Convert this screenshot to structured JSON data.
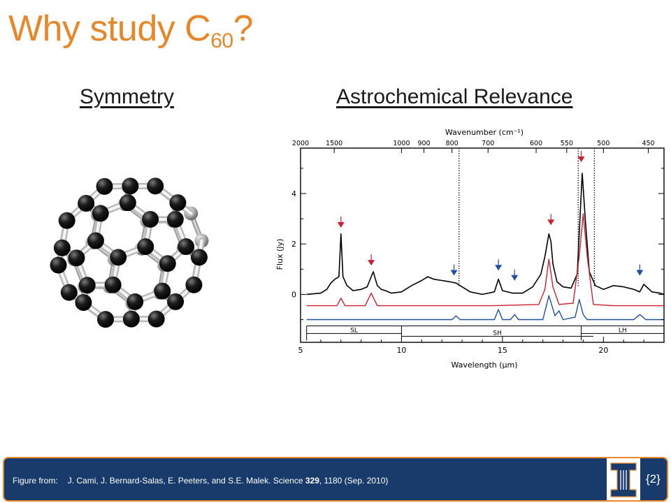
{
  "slide": {
    "title_main": "Why study C",
    "title_sub": "60",
    "title_end": "?",
    "heading_left": "Symmetry",
    "heading_right": "Astrochemical Relevance"
  },
  "figure": {
    "top_axis_label": "Wavenumber (cm⁻¹)",
    "bottom_axis_label": "Wavelength (μm)",
    "y_axis_label": "Flux (Jy)",
    "top_ticks": [
      "2000",
      "1500",
      "1000",
      "900",
      "800",
      "700",
      "600",
      "550",
      "500",
      "450"
    ],
    "bottom_ticks": [
      "5",
      "10",
      "15",
      "20"
    ],
    "y_ticks": [
      "0",
      "2",
      "4"
    ],
    "module_labels": [
      "SL",
      "SH",
      "LH"
    ]
  },
  "chart_data": {
    "type": "line",
    "xlabel": "Wavelength (μm)",
    "ylabel": "Flux (Jy)",
    "xlim": [
      5,
      23
    ],
    "ylim": [
      -1.9,
      5.8
    ],
    "top_axis": {
      "label": "Wavenumber (cm⁻¹)",
      "ticks": [
        2000,
        1500,
        1000,
        900,
        800,
        700,
        600,
        550,
        500,
        450
      ]
    },
    "series": [
      {
        "color": "#000000",
        "x": [
          5.3,
          6.0,
          6.3,
          6.5,
          6.7,
          6.9,
          7.0,
          7.1,
          7.3,
          7.6,
          8.0,
          8.3,
          8.6,
          8.8,
          9.0,
          9.2,
          9.5,
          10.0,
          10.5,
          11.0,
          11.3,
          11.6,
          12.0,
          12.4,
          12.7,
          13.0,
          13.4,
          14.0,
          14.6,
          14.8,
          15.0,
          15.5,
          16.0,
          16.5,
          16.9,
          17.1,
          17.3,
          17.4,
          17.5,
          17.7,
          18.0,
          18.4,
          18.7,
          18.85,
          18.95,
          19.1,
          19.3,
          19.6,
          20.0,
          20.5,
          21.0,
          21.5,
          21.8,
          22.0,
          22.4,
          22.8,
          23.0
        ],
        "y": [
          0.0,
          0.05,
          0.2,
          0.45,
          0.6,
          0.7,
          2.4,
          0.7,
          0.35,
          0.15,
          0.2,
          0.3,
          0.9,
          0.35,
          0.2,
          0.15,
          0.05,
          0.1,
          0.35,
          0.55,
          0.7,
          0.6,
          0.55,
          0.5,
          0.45,
          0.3,
          0.1,
          0.0,
          0.1,
          0.6,
          0.15,
          0.05,
          0.05,
          0.3,
          0.8,
          1.5,
          2.4,
          2.1,
          1.2,
          0.5,
          0.3,
          0.25,
          0.8,
          3.2,
          4.8,
          3.0,
          0.9,
          0.35,
          0.2,
          0.35,
          0.3,
          0.2,
          0.1,
          0.4,
          0.1,
          0.05,
          0.0
        ]
      },
      {
        "color": "#cc1f2f",
        "x": [
          5.3,
          6.8,
          7.0,
          7.2,
          8.2,
          8.5,
          8.8,
          14.5,
          16.8,
          17.1,
          17.3,
          17.5,
          17.8,
          18.5,
          18.8,
          19.0,
          19.2,
          19.5,
          20.5,
          23.0
        ],
        "y": [
          -0.45,
          -0.45,
          -0.15,
          -0.45,
          -0.45,
          0.05,
          -0.45,
          -0.45,
          -0.4,
          0.2,
          1.4,
          0.3,
          -0.4,
          -0.35,
          1.5,
          3.2,
          1.5,
          -0.4,
          -0.45,
          -0.45
        ]
      },
      {
        "color": "#1f4fa0",
        "x": [
          5.3,
          12.5,
          12.7,
          12.9,
          14.6,
          14.8,
          15.0,
          15.4,
          15.6,
          15.8,
          17.0,
          17.3,
          17.6,
          17.8,
          18.0,
          18.6,
          18.8,
          19.0,
          19.2,
          21.5,
          21.8,
          22.1,
          23.0
        ],
        "y": [
          -1.0,
          -1.0,
          -0.85,
          -1.0,
          -1.0,
          -0.6,
          -1.0,
          -1.0,
          -0.8,
          -1.0,
          -1.0,
          -0.05,
          -0.85,
          -0.65,
          -1.0,
          -0.9,
          -0.2,
          -0.8,
          -1.0,
          -1.0,
          -0.8,
          -1.0,
          -1.0
        ]
      }
    ],
    "annotations": [
      {
        "type": "arrow",
        "color": "#cc1f2f",
        "x": 7.0,
        "y": 2.7
      },
      {
        "type": "arrow",
        "color": "#cc1f2f",
        "x": 8.5,
        "y": 1.2
      },
      {
        "type": "arrow",
        "color": "#cc1f2f",
        "x": 17.4,
        "y": 2.8
      },
      {
        "type": "arrow",
        "color": "#cc1f2f",
        "x": 18.9,
        "y": 5.3
      },
      {
        "type": "arrow",
        "color": "#1f4fa0",
        "x": 12.6,
        "y": 0.8
      },
      {
        "type": "arrow",
        "color": "#1f4fa0",
        "x": 14.8,
        "y": 1.0
      },
      {
        "type": "arrow",
        "color": "#1f4fa0",
        "x": 15.6,
        "y": 0.6
      },
      {
        "type": "arrow",
        "color": "#1f4fa0",
        "x": 21.8,
        "y": 0.8
      }
    ],
    "modules": [
      {
        "label": "SL",
        "x": [
          5.3,
          10.0
        ]
      },
      {
        "label": "SH",
        "x": [
          10.0,
          19.5
        ]
      },
      {
        "label": "LH",
        "x": [
          18.9,
          23.0
        ]
      }
    ]
  },
  "footer": {
    "label": "Figure from:",
    "citation_pre": "J. Cami, J. Bernard-Salas, E. Peeters, and S.E. Malek. Science ",
    "citation_volume": "329",
    "citation_post": ", 1180 (Sep. 2010)",
    "page_number": "{2}"
  },
  "colors": {
    "accent": "#e8862a",
    "footer_bg": "#183b6c",
    "model_red": "#cc1f2f",
    "model_blue": "#1f4fa0"
  }
}
